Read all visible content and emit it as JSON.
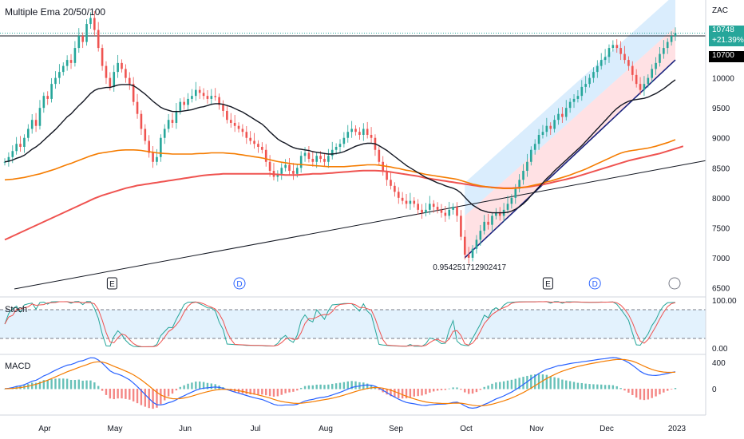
{
  "chart_data": {
    "type": "candlestick",
    "title": "Multiple Ema 20/50/100",
    "symbol": "ZAC",
    "months": [
      "Apr",
      "May",
      "Jun",
      "Jul",
      "Aug",
      "Sep",
      "Oct",
      "Nov",
      "Dec",
      "2023"
    ],
    "y_ticks": [
      10000,
      9500,
      9000,
      8500,
      8000,
      7500,
      7000,
      6500
    ],
    "ylim": [
      6400,
      11300
    ],
    "price": {
      "last": "10748",
      "change": "+21.39%",
      "level": "10700"
    },
    "fib_label": "0.954251712902417",
    "event_markers": [
      {
        "type": "E",
        "month_pos": 1.6
      },
      {
        "type": "D",
        "month_pos": 3.5
      },
      {
        "type": "E",
        "month_pos": 8.1
      },
      {
        "type": "D",
        "month_pos": 8.8
      }
    ],
    "closes": [
      8600,
      8680,
      8780,
      8900,
      8850,
      9000,
      9150,
      9300,
      9200,
      9500,
      9700,
      9650,
      9900,
      10000,
      10100,
      10200,
      10300,
      10250,
      10500,
      10700,
      10600,
      10900,
      11000,
      10800,
      10500,
      10200,
      10000,
      9850,
      10100,
      10250,
      10150,
      10000,
      9900,
      9600,
      9400,
      9150,
      8950,
      8750,
      8600,
      8680,
      9000,
      9150,
      9300,
      9250,
      9450,
      9600,
      9550,
      9650,
      9700,
      9800,
      9750,
      9700,
      9650,
      9700,
      9680,
      9550,
      9450,
      9300,
      9250,
      9200,
      9150,
      9100,
      9000,
      8950,
      8900,
      8850,
      8800,
      8600,
      8450,
      8350,
      8400,
      8500,
      8550,
      8450,
      8400,
      8500,
      8700,
      8750,
      8650,
      8600,
      8700,
      8650,
      8600,
      8700,
      8800,
      8850,
      8900,
      9000,
      9100,
      9150,
      9100,
      9050,
      9150,
      9050,
      9000,
      8800,
      8600,
      8450,
      8300,
      8200,
      8100,
      8000,
      7950,
      7900,
      7950,
      7900,
      7800,
      7750,
      7800,
      7900,
      7850,
      7800,
      7750,
      7700,
      7800,
      7850,
      7700,
      7350,
      7050,
      7000,
      7150,
      7300,
      7450,
      7600,
      7550,
      7700,
      7750,
      7700,
      7800,
      7900,
      8000,
      8150,
      8300,
      8450,
      8600,
      8800,
      8900,
      9050,
      9100,
      9200,
      9150,
      9300,
      9400,
      9350,
      9500,
      9600,
      9650,
      9700,
      9850,
      9900,
      10000,
      10100,
      10200,
      10300,
      10350,
      10500,
      10550,
      10500,
      10400,
      10300,
      10200,
      10050,
      9900,
      9800,
      9900,
      10000,
      10150,
      10250,
      10400,
      10500,
      10600,
      10700,
      10748
    ],
    "ema20": [
      8600,
      8610,
      8630,
      8660,
      8680,
      8710,
      8760,
      8810,
      8850,
      8900,
      8960,
      9020,
      9080,
      9140,
      9210,
      9280,
      9350,
      9400,
      9470,
      9540,
      9600,
      9670,
      9740,
      9790,
      9820,
      9830,
      9840,
      9840,
      9860,
      9880,
      9890,
      9890,
      9890,
      9870,
      9830,
      9780,
      9730,
      9670,
      9610,
      9560,
      9510,
      9480,
      9460,
      9440,
      9440,
      9440,
      9450,
      9460,
      9470,
      9490,
      9510,
      9520,
      9540,
      9560,
      9570,
      9570,
      9560,
      9540,
      9520,
      9490,
      9460,
      9430,
      9390,
      9350,
      9310,
      9270,
      9230,
      9170,
      9100,
      9040,
      8980,
      8940,
      8910,
      8870,
      8840,
      8820,
      8810,
      8800,
      8790,
      8770,
      8760,
      8750,
      8740,
      8730,
      8730,
      8740,
      8750,
      8770,
      8800,
      8830,
      8860,
      8880,
      8900,
      8910,
      8910,
      8900,
      8870,
      8830,
      8790,
      8740,
      8690,
      8640,
      8590,
      8540,
      8500,
      8460,
      8420,
      8380,
      8340,
      8310,
      8280,
      8250,
      8230,
      8200,
      8180,
      8160,
      8130,
      8080,
      8010,
      7940,
      7880,
      7840,
      7800,
      7780,
      7760,
      7750,
      7750,
      7750,
      7750,
      7760,
      7780,
      7810,
      7850,
      7900,
      7960,
      8040,
      8110,
      8180,
      8250,
      8320,
      8380,
      8450,
      8510,
      8570,
      8630,
      8690,
      8750,
      8810,
      8870,
      8940,
      9010,
      9080,
      9150,
      9220,
      9290,
      9360,
      9430,
      9490,
      9540,
      9580,
      9610,
      9630,
      9640,
      9650,
      9660,
      9680,
      9710,
      9740,
      9780,
      9820,
      9870,
      9920,
      9970
    ],
    "ema50": [
      8300,
      8305,
      8310,
      8320,
      8330,
      8340,
      8355,
      8370,
      8385,
      8400,
      8420,
      8440,
      8460,
      8480,
      8505,
      8530,
      8555,
      8575,
      8600,
      8625,
      8650,
      8675,
      8700,
      8720,
      8740,
      8750,
      8760,
      8770,
      8780,
      8790,
      8795,
      8800,
      8800,
      8800,
      8795,
      8790,
      8780,
      8770,
      8760,
      8750,
      8745,
      8740,
      8735,
      8730,
      8730,
      8730,
      8730,
      8730,
      8730,
      8735,
      8740,
      8740,
      8745,
      8750,
      8750,
      8750,
      8750,
      8745,
      8740,
      8735,
      8725,
      8715,
      8705,
      8695,
      8685,
      8675,
      8665,
      8650,
      8635,
      8620,
      8605,
      8595,
      8585,
      8575,
      8565,
      8560,
      8555,
      8550,
      8545,
      8540,
      8535,
      8530,
      8525,
      8520,
      8520,
      8520,
      8520,
      8520,
      8525,
      8530,
      8535,
      8540,
      8545,
      8550,
      8550,
      8550,
      8545,
      8535,
      8525,
      8515,
      8500,
      8490,
      8475,
      8460,
      8450,
      8435,
      8420,
      8405,
      8390,
      8380,
      8370,
      8360,
      8350,
      8340,
      8330,
      8320,
      8310,
      8290,
      8270,
      8250,
      8230,
      8215,
      8200,
      8190,
      8180,
      8170,
      8165,
      8160,
      8155,
      8155,
      8155,
      8160,
      8165,
      8175,
      8185,
      8200,
      8215,
      8230,
      8245,
      8265,
      8280,
      8300,
      8320,
      8340,
      8360,
      8380,
      8405,
      8430,
      8455,
      8480,
      8510,
      8540,
      8570,
      8600,
      8630,
      8660,
      8690,
      8720,
      8745,
      8765,
      8780,
      8790,
      8800,
      8810,
      8820,
      8830,
      8845,
      8860,
      8880,
      8900,
      8920,
      8945,
      8970
    ],
    "ema100": [
      7300,
      7330,
      7360,
      7390,
      7420,
      7450,
      7480,
      7510,
      7540,
      7570,
      7600,
      7630,
      7660,
      7690,
      7720,
      7750,
      7780,
      7810,
      7840,
      7870,
      7900,
      7930,
      7960,
      7990,
      8015,
      8040,
      8060,
      8080,
      8100,
      8120,
      8140,
      8160,
      8175,
      8190,
      8205,
      8215,
      8225,
      8235,
      8245,
      8255,
      8265,
      8275,
      8285,
      8295,
      8305,
      8315,
      8325,
      8335,
      8345,
      8355,
      8365,
      8375,
      8380,
      8385,
      8390,
      8395,
      8400,
      8400,
      8400,
      8400,
      8400,
      8400,
      8400,
      8400,
      8400,
      8400,
      8400,
      8400,
      8400,
      8395,
      8390,
      8385,
      8380,
      8380,
      8380,
      8380,
      8385,
      8390,
      8395,
      8400,
      8400,
      8400,
      8405,
      8410,
      8415,
      8420,
      8425,
      8430,
      8435,
      8440,
      8445,
      8450,
      8455,
      8455,
      8455,
      8455,
      8450,
      8445,
      8440,
      8430,
      8420,
      8410,
      8400,
      8390,
      8380,
      8370,
      8360,
      8345,
      8330,
      8320,
      8310,
      8300,
      8290,
      8280,
      8270,
      8260,
      8250,
      8240,
      8230,
      8220,
      8210,
      8200,
      8190,
      8185,
      8180,
      8175,
      8170,
      8165,
      8160,
      8160,
      8160,
      8165,
      8170,
      8175,
      8180,
      8190,
      8200,
      8210,
      8220,
      8235,
      8250,
      8265,
      8280,
      8295,
      8310,
      8325,
      8340,
      8360,
      8380,
      8400,
      8420,
      8440,
      8460,
      8480,
      8500,
      8520,
      8540,
      8560,
      8580,
      8600,
      8620,
      8635,
      8650,
      8665,
      8680,
      8695,
      8710,
      8725,
      8740,
      8760,
      8780,
      8800,
      8820,
      8840,
      8860
    ],
    "stoch": {
      "ylim": [
        0,
        100
      ],
      "ticks": [
        "100.00",
        "0.00"
      ],
      "bands": [
        80,
        20
      ]
    },
    "macd": {
      "ticks": [
        "400",
        "0"
      ]
    }
  },
  "ui": {
    "pane_stoch": "Stoch",
    "pane_macd": "MACD",
    "colors": {
      "up": "#26a69a",
      "down": "#ef5350",
      "ema20": "#131722",
      "ema50": "#f57c00",
      "ema100": "#ef5350",
      "channel_blue": "#bbdefb",
      "channel_red": "#ffcdd2",
      "trend": "#1a237e",
      "stoch_k": "#26a69a",
      "stoch_d": "#ef5350",
      "macd_line": "#2962ff",
      "signal_line": "#f57c00",
      "price_tag": "#26a69a",
      "level_tag": "#000000"
    }
  }
}
